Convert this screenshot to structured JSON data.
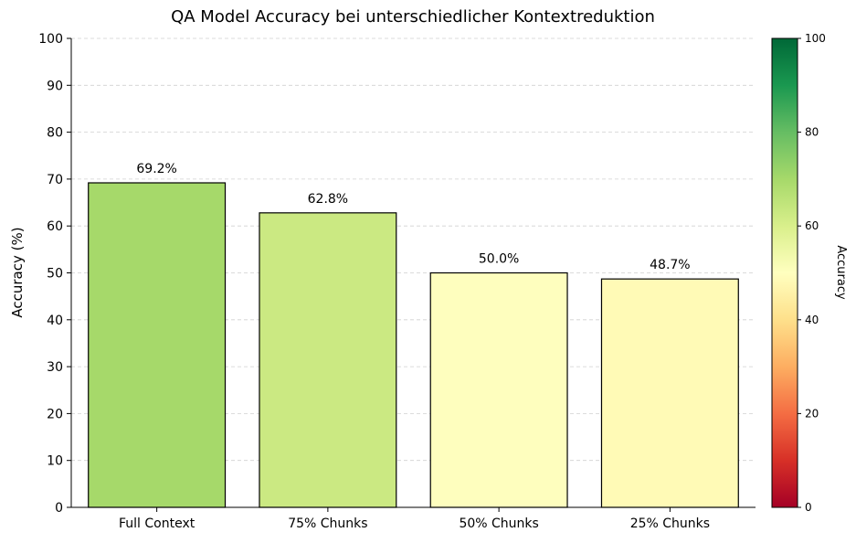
{
  "chart_data": {
    "type": "bar",
    "title": "QA Model Accuracy bei unterschiedlicher Kontextreduktion",
    "xlabel": "",
    "ylabel": "Accuracy (%)",
    "ylim": [
      0,
      100
    ],
    "yticks": [
      "0",
      "10",
      "20",
      "30",
      "40",
      "50",
      "60",
      "70",
      "80",
      "90",
      "100"
    ],
    "grid": "y-dashed",
    "categories": [
      "Full Context",
      "75% Chunks",
      "50% Chunks",
      "25% Chunks"
    ],
    "values": [
      69.2,
      62.8,
      50.0,
      48.7
    ],
    "data_labels": [
      "69.2%",
      "62.8%",
      "50.0%",
      "48.7%"
    ],
    "bar_colors": [
      "#a6d96a",
      "#cbe982",
      "#fefebe",
      "#fffab6"
    ],
    "colormap": "RdYlGn",
    "colorbar": {
      "label": "Accuracy",
      "range": [
        0,
        100
      ],
      "ticks": [
        "0",
        "20",
        "40",
        "60",
        "80",
        "100"
      ],
      "stops": [
        "#a50026",
        "#d73027",
        "#f46d43",
        "#fdae61",
        "#fee08b",
        "#ffffbf",
        "#d9ef8b",
        "#a6d96a",
        "#66bd63",
        "#1a9850",
        "#006837"
      ]
    }
  }
}
